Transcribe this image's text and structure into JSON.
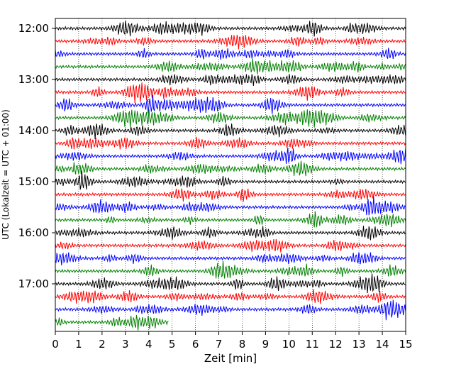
{
  "chart_data": {
    "type": "line",
    "title": "",
    "xlabel": "Zeit  [min]",
    "ylabel": "UTC (Lokalzeit = UTC + 01:00)",
    "xlim": [
      0,
      15
    ],
    "x_ticks": [
      "0",
      "1",
      "2",
      "3",
      "4",
      "5",
      "6",
      "7",
      "8",
      "9",
      "10",
      "11",
      "12",
      "13",
      "14",
      "15"
    ],
    "y_ticks": [
      "12:00",
      "13:00",
      "14:00",
      "15:00",
      "16:00",
      "17:00"
    ],
    "trace_interval_min": 15,
    "colors_cycle": [
      "#000000",
      "#ff0000",
      "#0000ff",
      "#008000"
    ],
    "grid": "vertical-dotted",
    "traces": [
      {
        "start": "12:00",
        "color": "#000000",
        "end_min": 15
      },
      {
        "start": "12:15",
        "color": "#ff0000",
        "end_min": 15
      },
      {
        "start": "12:30",
        "color": "#0000ff",
        "end_min": 15
      },
      {
        "start": "12:45",
        "color": "#008000",
        "end_min": 15
      },
      {
        "start": "13:00",
        "color": "#000000",
        "end_min": 15
      },
      {
        "start": "13:15",
        "color": "#ff0000",
        "end_min": 15
      },
      {
        "start": "13:30",
        "color": "#0000ff",
        "end_min": 15
      },
      {
        "start": "13:45",
        "color": "#008000",
        "end_min": 15
      },
      {
        "start": "14:00",
        "color": "#000000",
        "end_min": 15
      },
      {
        "start": "14:15",
        "color": "#ff0000",
        "end_min": 15
      },
      {
        "start": "14:30",
        "color": "#0000ff",
        "end_min": 15
      },
      {
        "start": "14:45",
        "color": "#008000",
        "end_min": 15
      },
      {
        "start": "15:00",
        "color": "#000000",
        "end_min": 15
      },
      {
        "start": "15:15",
        "color": "#ff0000",
        "end_min": 15
      },
      {
        "start": "15:30",
        "color": "#0000ff",
        "end_min": 15
      },
      {
        "start": "15:45",
        "color": "#008000",
        "end_min": 15
      },
      {
        "start": "16:00",
        "color": "#000000",
        "end_min": 15
      },
      {
        "start": "16:15",
        "color": "#ff0000",
        "end_min": 15
      },
      {
        "start": "16:30",
        "color": "#0000ff",
        "end_min": 15
      },
      {
        "start": "16:45",
        "color": "#008000",
        "end_min": 15
      },
      {
        "start": "17:00",
        "color": "#000000",
        "end_min": 15
      },
      {
        "start": "17:15",
        "color": "#ff0000",
        "end_min": 15
      },
      {
        "start": "17:30",
        "color": "#0000ff",
        "end_min": 15
      },
      {
        "start": "17:45",
        "color": "#008000",
        "end_min": 4.85
      }
    ]
  }
}
